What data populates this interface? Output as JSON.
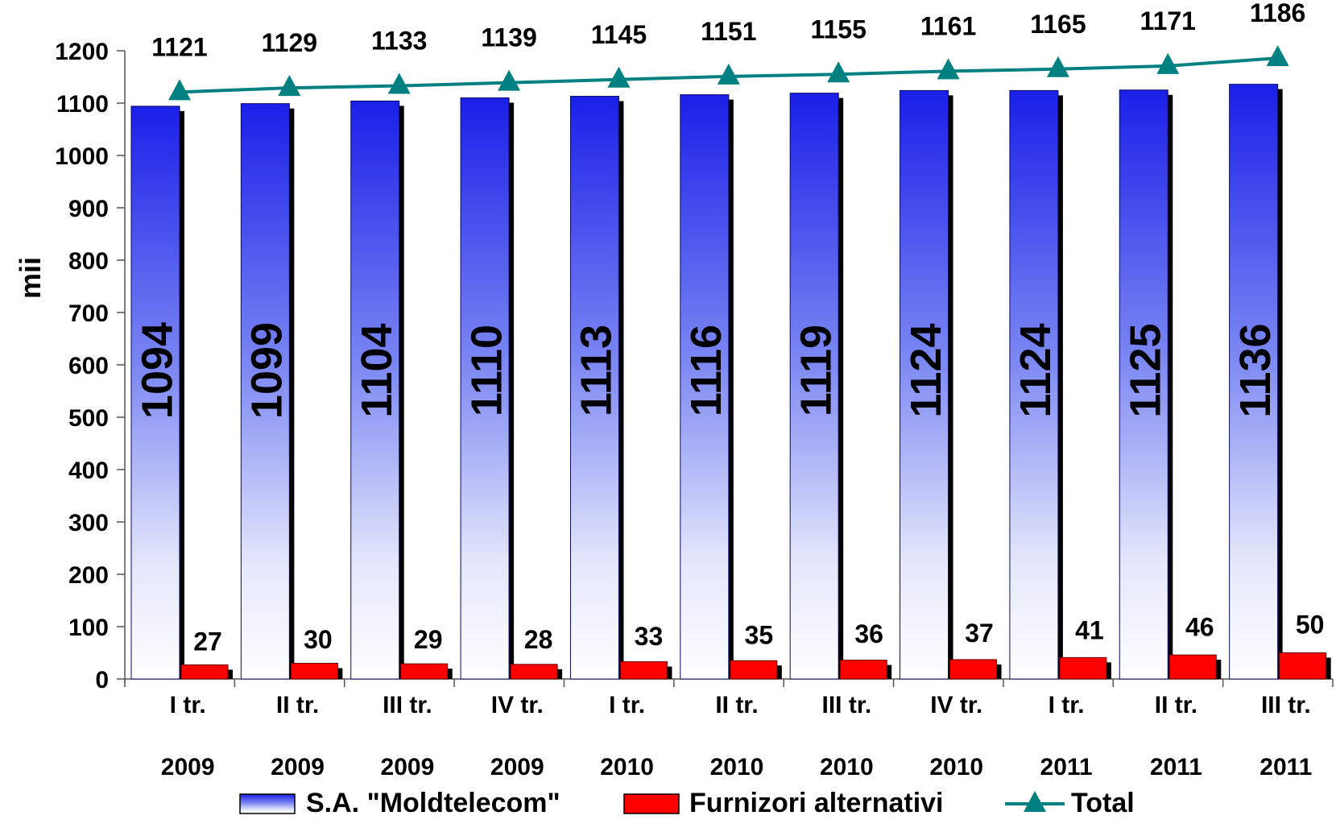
{
  "chart_data": {
    "type": "bar",
    "ylabel": "mii",
    "ylim": [
      0,
      1200
    ],
    "yticks": [
      0,
      100,
      200,
      300,
      400,
      500,
      600,
      700,
      800,
      900,
      1000,
      1100,
      1200
    ],
    "categories": [
      [
        "I tr.",
        "2009"
      ],
      [
        "II tr.",
        "2009"
      ],
      [
        "III tr.",
        "2009"
      ],
      [
        "IV tr.",
        "2009"
      ],
      [
        "I tr.",
        "2010"
      ],
      [
        "II tr.",
        "2010"
      ],
      [
        "III tr.",
        "2010"
      ],
      [
        "IV tr.",
        "2010"
      ],
      [
        "I tr.",
        "2011"
      ],
      [
        "II tr.",
        "2011"
      ],
      [
        "III tr.",
        "2011"
      ]
    ],
    "series": [
      {
        "name": "S.A. \"Moldtelecom\"",
        "kind": "bar",
        "color": "#1f2ee6",
        "values": [
          1094,
          1099,
          1104,
          1110,
          1113,
          1116,
          1119,
          1124,
          1124,
          1125,
          1136
        ]
      },
      {
        "name": "Furnizori alternativi",
        "kind": "bar",
        "color": "#ff0000",
        "values": [
          27,
          30,
          29,
          28,
          33,
          35,
          36,
          37,
          41,
          46,
          50
        ]
      },
      {
        "name": "Total",
        "kind": "line",
        "color": "#008080",
        "marker": "triangle",
        "values": [
          1121,
          1129,
          1133,
          1139,
          1145,
          1151,
          1155,
          1161,
          1165,
          1171,
          1186
        ]
      }
    ],
    "grid": false,
    "legend_position": "bottom"
  }
}
